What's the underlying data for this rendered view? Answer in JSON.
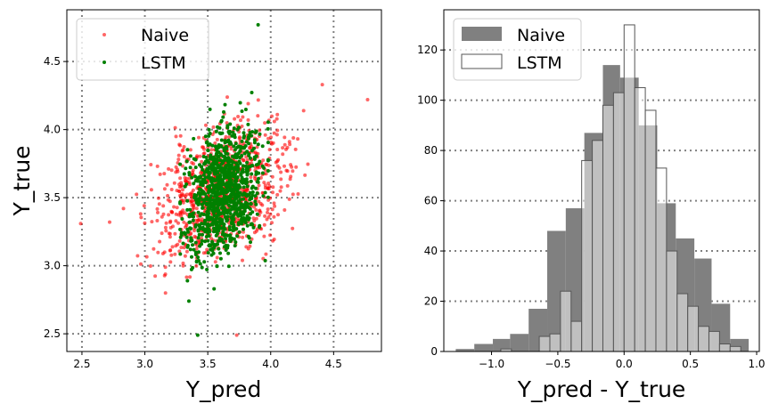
{
  "chart_data": [
    {
      "type": "scatter",
      "title": "",
      "xlabel": "Y_pred",
      "ylabel": "Y_true",
      "xlim": [
        2.38,
        4.88
      ],
      "ylim": [
        2.37,
        4.88
      ],
      "xticks": [
        "2.5",
        "3.0",
        "3.5",
        "4.0",
        "4.5"
      ],
      "yticks": [
        "2.5",
        "3.0",
        "3.5",
        "4.0",
        "4.5"
      ],
      "grid": "dotted",
      "legend_position": "top-left",
      "series": [
        {
          "name": "Naive",
          "color": "#ff0000",
          "opacity": 0.6,
          "count": 900,
          "x_center": 3.62,
          "x_spread": 0.36,
          "y_center": 3.55,
          "y_spread": 0.32,
          "outliers": [
            [
              2.49,
              3.31
            ],
            [
              2.72,
              3.32
            ],
            [
              4.77,
              4.22
            ],
            [
              3.73,
              2.49
            ],
            [
              4.41,
              4.33
            ],
            [
              2.83,
              3.42
            ]
          ]
        },
        {
          "name": "LSTM",
          "color": "#008000",
          "opacity": 1.0,
          "count": 1000,
          "x_center": 3.62,
          "x_spread": 0.2,
          "y_center": 3.55,
          "y_spread": 0.32,
          "x_min": 3.28,
          "x_max": 3.98,
          "outliers": [
            [
              3.9,
              4.77
            ],
            [
              3.42,
              2.49
            ],
            [
              3.35,
              2.74
            ],
            [
              3.55,
              2.83
            ]
          ]
        }
      ]
    },
    {
      "type": "histogram",
      "title": "",
      "xlabel": "Y_pred - Y_true",
      "ylabel": "",
      "xlim": [
        -1.36,
        1.02
      ],
      "ylim": [
        0,
        136
      ],
      "xticks": [
        "−1.0",
        "−0.5",
        "0.0",
        "0.5",
        "1.0"
      ],
      "yticks": [
        "0",
        "20",
        "40",
        "60",
        "80",
        "100",
        "120"
      ],
      "grid": "dotted-horizontal",
      "legend_position": "top-left",
      "series": [
        {
          "name": "Naive",
          "style": "filled",
          "color": "#808080",
          "bins": [
            [
              -1.27,
              -1.13,
              1
            ],
            [
              -1.13,
              -0.99,
              3
            ],
            [
              -0.99,
              -0.86,
              5
            ],
            [
              -0.86,
              -0.72,
              7
            ],
            [
              -0.72,
              -0.58,
              17
            ],
            [
              -0.58,
              -0.44,
              48
            ],
            [
              -0.44,
              -0.3,
              57
            ],
            [
              -0.3,
              -0.16,
              87
            ],
            [
              -0.16,
              -0.03,
              114
            ],
            [
              -0.03,
              0.11,
              109
            ],
            [
              0.11,
              0.25,
              90
            ],
            [
              0.25,
              0.39,
              59
            ],
            [
              0.39,
              0.53,
              45
            ],
            [
              0.53,
              0.66,
              37
            ],
            [
              0.66,
              0.8,
              19
            ],
            [
              0.8,
              0.94,
              5
            ]
          ]
        },
        {
          "name": "LSTM",
          "style": "outline",
          "color": "#ffffff",
          "edge": "#555555",
          "bins": [
            [
              -0.93,
              -0.85,
              1
            ],
            [
              -0.64,
              -0.56,
              6
            ],
            [
              -0.56,
              -0.48,
              7
            ],
            [
              -0.4,
              -0.32,
              12
            ],
            [
              -0.48,
              -0.4,
              24
            ],
            [
              -0.32,
              -0.24,
              76
            ],
            [
              -0.24,
              -0.16,
              84
            ],
            [
              -0.16,
              -0.08,
              98
            ],
            [
              -0.08,
              0.0,
              103
            ],
            [
              0.0,
              0.08,
              130
            ],
            [
              0.08,
              0.16,
              105
            ],
            [
              0.16,
              0.24,
              96
            ],
            [
              0.24,
              0.32,
              73
            ],
            [
              0.32,
              0.4,
              40
            ],
            [
              0.4,
              0.48,
              23
            ],
            [
              0.48,
              0.56,
              18
            ],
            [
              0.56,
              0.64,
              10
            ],
            [
              0.64,
              0.72,
              8
            ],
            [
              0.72,
              0.8,
              3
            ],
            [
              0.8,
              0.88,
              2
            ]
          ]
        }
      ]
    }
  ]
}
